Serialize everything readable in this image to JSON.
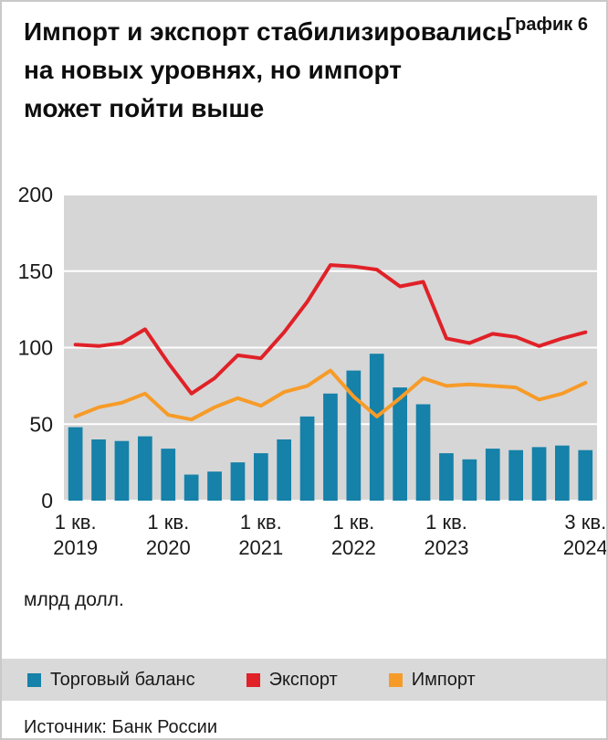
{
  "header": {
    "title_lines": [
      "Импорт и экспорт стабилизировались",
      "на новых уровнях, но импорт",
      "может пойти выше"
    ],
    "chart_number": "График 6"
  },
  "chart_data": {
    "type": "combo",
    "title": "Импорт и экспорт стабилизировались на новых уровнях, но импорт может пойти выше",
    "xlabel": "",
    "ylabel": "млрд долл.",
    "unit_label": "млрд долл.",
    "ylim": [
      0,
      200
    ],
    "yticks": [
      0,
      50,
      100,
      150,
      200
    ],
    "grid": true,
    "legend_position": "bottom",
    "plot_bg": "#d6d6d6",
    "gridline_color": "#ffffff",
    "categories": [
      "1 кв. 2019",
      "2 кв. 2019",
      "3 кв. 2019",
      "4 кв. 2019",
      "1 кв. 2020",
      "2 кв. 2020",
      "3 кв. 2020",
      "4 кв. 2020",
      "1 кв. 2021",
      "2 кв. 2021",
      "3 кв. 2021",
      "4 кв. 2021",
      "1 кв. 2022",
      "2 кв. 2022",
      "3 кв. 2022",
      "4 кв. 2022",
      "1 кв. 2023",
      "2 кв. 2023",
      "3 кв. 2023",
      "4 кв. 2023",
      "1 кв. 2024",
      "2 кв. 2024",
      "3 кв. 2024"
    ],
    "x_ticks": [
      {
        "index": 0,
        "line1": "1 кв.",
        "line2": "2019"
      },
      {
        "index": 4,
        "line1": "1 кв.",
        "line2": "2020"
      },
      {
        "index": 8,
        "line1": "1 кв.",
        "line2": "2021"
      },
      {
        "index": 12,
        "line1": "1 кв.",
        "line2": "2022"
      },
      {
        "index": 16,
        "line1": "1 кв.",
        "line2": "2023"
      },
      {
        "index": 22,
        "line1": "3 кв.",
        "line2": "2024"
      }
    ],
    "series": [
      {
        "name": "Торговый баланс",
        "type": "bar",
        "color": "#1681a9",
        "values": [
          48,
          40,
          39,
          42,
          34,
          17,
          19,
          25,
          31,
          40,
          55,
          70,
          85,
          96,
          74,
          63,
          31,
          27,
          34,
          33,
          35,
          36,
          33
        ]
      },
      {
        "name": "Экспорт",
        "type": "line",
        "color": "#e02128",
        "values": [
          102,
          101,
          103,
          112,
          90,
          70,
          80,
          95,
          93,
          110,
          130,
          154,
          153,
          151,
          140,
          143,
          106,
          103,
          109,
          107,
          101,
          106,
          110
        ]
      },
      {
        "name": "Импорт",
        "type": "line",
        "color": "#f79b28",
        "values": [
          55,
          61,
          64,
          70,
          56,
          53,
          61,
          67,
          62,
          71,
          75,
          85,
          68,
          55,
          67,
          80,
          75,
          76,
          75,
          74,
          66,
          70,
          77
        ]
      }
    ]
  },
  "legend": {
    "items": [
      {
        "label": "Торговый баланс",
        "color": "#1681a9"
      },
      {
        "label": "Экспорт",
        "color": "#e02128"
      },
      {
        "label": "Импорт",
        "color": "#f79b28"
      }
    ]
  },
  "source": "Источник: Банк России"
}
